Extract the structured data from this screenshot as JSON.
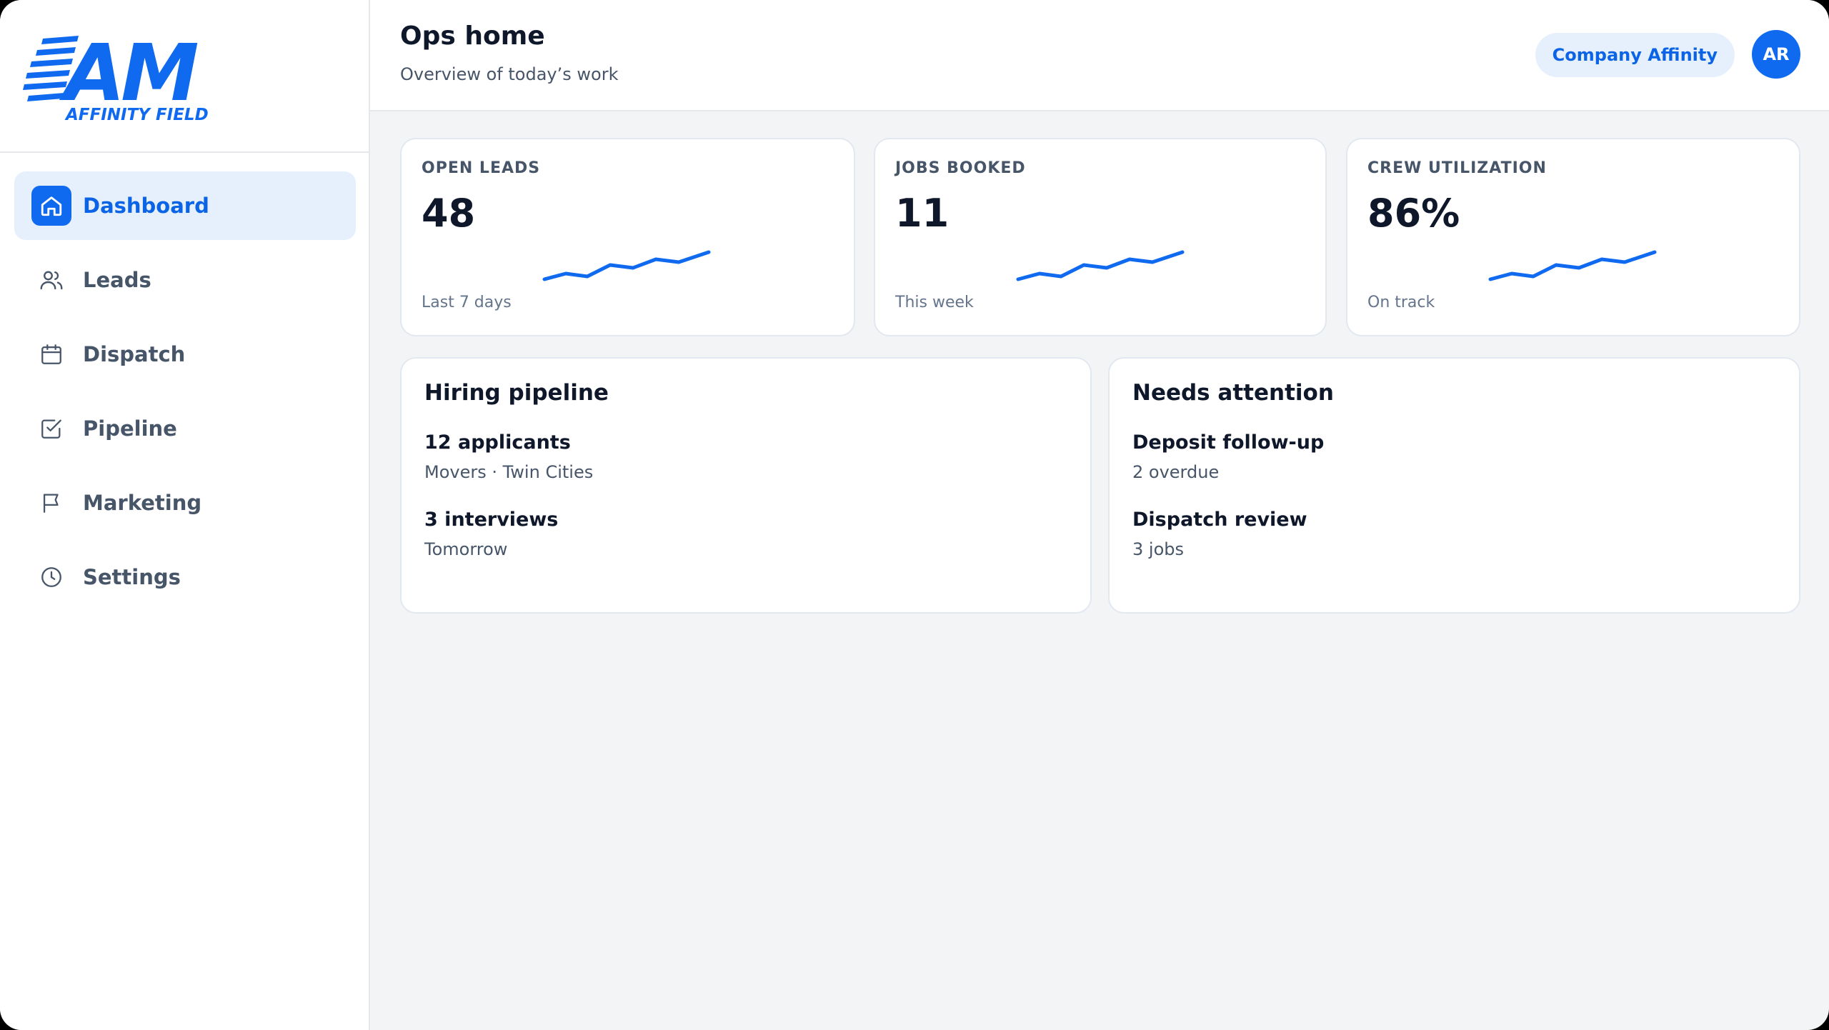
{
  "brand": {
    "logo_text": "AM",
    "logo_subtext": "AFFINITY FIELD",
    "accent": "#0f6af0"
  },
  "sidebar": {
    "items": [
      {
        "label": "Dashboard",
        "icon": "home-icon",
        "active": true
      },
      {
        "label": "Leads",
        "icon": "users-icon",
        "active": false
      },
      {
        "label": "Dispatch",
        "icon": "calendar-icon",
        "active": false
      },
      {
        "label": "Pipeline",
        "icon": "checkbox-icon",
        "active": false
      },
      {
        "label": "Marketing",
        "icon": "flag-icon",
        "active": false
      },
      {
        "label": "Settings",
        "icon": "clock-icon",
        "active": false
      }
    ]
  },
  "header": {
    "title": "Ops home",
    "subtitle": "Overview of today’s work",
    "company": "Company Affinity",
    "avatar_initials": "AR"
  },
  "stats": [
    {
      "label": "OPEN LEADS",
      "value": "48",
      "foot": "Last 7 days"
    },
    {
      "label": "JOBS BOOKED",
      "value": "11",
      "foot": "This week"
    },
    {
      "label": "CREW UTILIZATION",
      "value": "86%",
      "foot": "On track"
    }
  ],
  "panels": {
    "hiring": {
      "title": "Hiring pipeline",
      "items": [
        {
          "title": "12 applicants",
          "sub": "Movers · Twin Cities"
        },
        {
          "title": "3 interviews",
          "sub": "Tomorrow"
        }
      ]
    },
    "attention": {
      "title": "Needs attention",
      "items": [
        {
          "title": "Deposit follow-up",
          "sub": "2 overdue"
        },
        {
          "title": "Dispatch review",
          "sub": "3 jobs"
        }
      ]
    }
  }
}
